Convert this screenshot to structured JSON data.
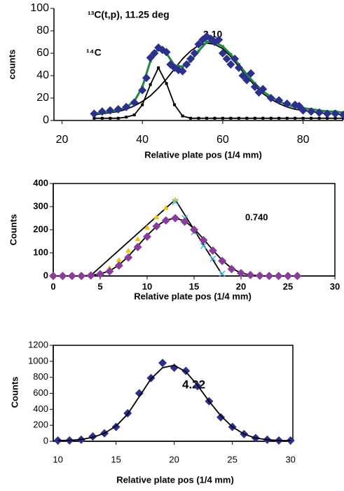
{
  "chart_data": [
    {
      "type": "scatter",
      "frame": false,
      "x_label": "Relative plate pos (1/4 mm)",
      "y_label": "counts",
      "annotations": [
        "¹³C(t,p), 11.25 deg",
        "3.10",
        "¹⁴C"
      ],
      "xlim": [
        18,
        90
      ],
      "xticks": [
        20,
        40,
        60,
        80
      ],
      "ylim": [
        0,
        100
      ],
      "yticks": [
        0,
        20,
        40,
        60,
        80,
        100
      ],
      "series": [
        {
          "color": "#000000",
          "marker": "none",
          "line": true,
          "x": [
            28,
            30,
            32,
            34,
            36,
            38,
            40,
            42,
            44,
            46,
            48,
            50,
            52,
            54,
            56,
            58,
            60,
            62,
            64,
            66,
            68,
            70,
            72,
            74,
            76,
            78,
            80,
            82,
            84,
            86,
            88,
            90
          ],
          "values": [
            5,
            6,
            7,
            8,
            10,
            13,
            17,
            22,
            29,
            37,
            46,
            55,
            62,
            67,
            69,
            68,
            64,
            57,
            48,
            39,
            31,
            24,
            19,
            15,
            12,
            10,
            9,
            8,
            7,
            6,
            6,
            5
          ]
        },
        {
          "color": "#000000",
          "marker": "square",
          "line": true,
          "x": [
            28,
            30,
            32,
            34,
            36,
            38,
            40,
            42,
            44,
            46,
            48,
            50,
            52,
            54,
            56,
            58,
            60,
            62,
            64,
            66,
            68,
            70,
            72,
            74,
            76,
            78,
            80,
            82,
            84,
            86,
            88,
            90
          ],
          "values": [
            2,
            2,
            2,
            2,
            3,
            5,
            14,
            32,
            47,
            33,
            14,
            4,
            2,
            2,
            2,
            2,
            2,
            2,
            2,
            2,
            2,
            2,
            2,
            2,
            2,
            2,
            2,
            2,
            2,
            2,
            2,
            2
          ]
        },
        {
          "color": "#1e8a3c",
          "marker": "square",
          "line": true,
          "x": [
            28,
            30,
            32,
            34,
            36,
            38,
            40,
            42,
            44,
            46,
            48,
            50,
            52,
            54,
            56,
            58,
            60,
            62,
            64,
            66,
            68,
            70,
            72,
            74,
            76,
            78,
            80,
            82,
            84,
            86,
            88,
            90
          ],
          "values": [
            6,
            7,
            8,
            9,
            12,
            17,
            30,
            53,
            65,
            60,
            49,
            48,
            53,
            62,
            70,
            70,
            66,
            59,
            50,
            41,
            33,
            26,
            21,
            17,
            14,
            12,
            11,
            10,
            9,
            8,
            8,
            7
          ]
        },
        {
          "color": "#2b2f8f",
          "marker": "diamond",
          "line": false,
          "x": [
            28,
            30,
            32,
            34,
            36,
            38,
            40,
            41,
            42,
            43,
            44,
            45,
            46,
            47,
            48,
            49,
            50,
            51,
            52,
            53,
            54,
            55,
            56,
            57,
            58,
            59,
            60,
            61,
            62,
            63,
            64,
            65,
            66,
            67,
            68,
            69,
            70,
            72,
            74,
            76,
            78,
            79,
            80,
            82,
            84,
            86,
            88,
            90
          ],
          "values": [
            6,
            8,
            9,
            10,
            12,
            16,
            27,
            38,
            56,
            60,
            65,
            63,
            61,
            50,
            47,
            45,
            44,
            50,
            55,
            60,
            68,
            72,
            75,
            73,
            70,
            72,
            60,
            55,
            50,
            55,
            47,
            40,
            36,
            42,
            30,
            25,
            28,
            20,
            18,
            15,
            14,
            13,
            9,
            8,
            7,
            6,
            6,
            5
          ]
        }
      ]
    },
    {
      "type": "scatter",
      "frame": true,
      "x_label": "Relative plate pos (1/4 mm)",
      "y_label": "Counts",
      "annotations": [
        "0.740"
      ],
      "xlim": [
        0,
        30
      ],
      "xticks": [
        0,
        5,
        10,
        15,
        20,
        25,
        30
      ],
      "ylim": [
        0,
        400
      ],
      "yticks": [
        0,
        100,
        200,
        300,
        400
      ],
      "series": [
        {
          "color": "#000000",
          "marker": "none",
          "line": true,
          "x": [
            0,
            1,
            2,
            3,
            4,
            5,
            6,
            7,
            8,
            9,
            10,
            11,
            12,
            13,
            14,
            15,
            16,
            17,
            18,
            19,
            20,
            21,
            22,
            23,
            24,
            25,
            26
          ],
          "values": [
            0,
            0,
            0,
            0,
            3,
            9,
            22,
            47,
            85,
            130,
            175,
            215,
            242,
            250,
            238,
            205,
            160,
            112,
            68,
            33,
            13,
            4,
            1,
            0,
            0,
            0,
            0
          ]
        },
        {
          "color": "#000000",
          "marker": "none",
          "line": true,
          "x": [
            4,
            13,
            18
          ],
          "values": [
            2,
            330,
            5
          ]
        },
        {
          "color": "#f2c200",
          "marker": "triangle",
          "line": false,
          "x": [
            4,
            5,
            6,
            7,
            8,
            9,
            10,
            11,
            12,
            13
          ],
          "values": [
            2,
            12,
            35,
            70,
            110,
            160,
            210,
            255,
            295,
            330
          ]
        },
        {
          "color": "#3fb8e0",
          "marker": "cross",
          "line": false,
          "x": [
            13,
            14,
            15,
            16,
            17,
            18
          ],
          "values": [
            320,
            250,
            190,
            130,
            75,
            10
          ]
        },
        {
          "color": "#8a3c9c",
          "marker": "diamond",
          "line": false,
          "x": [
            0,
            1,
            2,
            3,
            4,
            5,
            6,
            7,
            8,
            9,
            10,
            11,
            12,
            13,
            14,
            15,
            16,
            17,
            18,
            19,
            20,
            21,
            22,
            23,
            24,
            25,
            26
          ],
          "values": [
            0,
            0,
            0,
            0,
            2,
            8,
            20,
            45,
            80,
            125,
            170,
            215,
            240,
            250,
            235,
            200,
            155,
            110,
            65,
            30,
            12,
            4,
            1,
            0,
            0,
            0,
            0
          ]
        }
      ]
    },
    {
      "type": "scatter",
      "frame": true,
      "x_label": "Relative plate pos (1/4 mm)",
      "y_label": "Counts",
      "annotations": [
        "4.22"
      ],
      "xlim": [
        9.6,
        30.2
      ],
      "xticks": [
        10,
        15,
        20,
        25,
        30
      ],
      "ylim": [
        0,
        1200
      ],
      "yticks": [
        0,
        200,
        400,
        600,
        800,
        1000,
        1200
      ],
      "series": [
        {
          "color": "#2b2f8f",
          "marker": "diamond",
          "line": false,
          "x": [
            10,
            11,
            12,
            13,
            14,
            15,
            16,
            17,
            18,
            19,
            20,
            21,
            22,
            23,
            24,
            25,
            26,
            27,
            28,
            29,
            30
          ],
          "values": [
            10,
            10,
            20,
            60,
            100,
            180,
            350,
            600,
            790,
            980,
            920,
            880,
            690,
            500,
            300,
            180,
            90,
            40,
            20,
            10,
            10
          ]
        },
        {
          "color": "#000000",
          "marker": "none",
          "line": true,
          "x": [
            10,
            11,
            12,
            13,
            14,
            15,
            16,
            17,
            18,
            19,
            20,
            21,
            22,
            23,
            24,
            25,
            26,
            27,
            28,
            29,
            30
          ],
          "values": [
            10,
            12,
            22,
            50,
            100,
            190,
            340,
            560,
            780,
            920,
            950,
            870,
            700,
            500,
            320,
            180,
            90,
            40,
            20,
            10,
            8
          ]
        }
      ]
    }
  ]
}
